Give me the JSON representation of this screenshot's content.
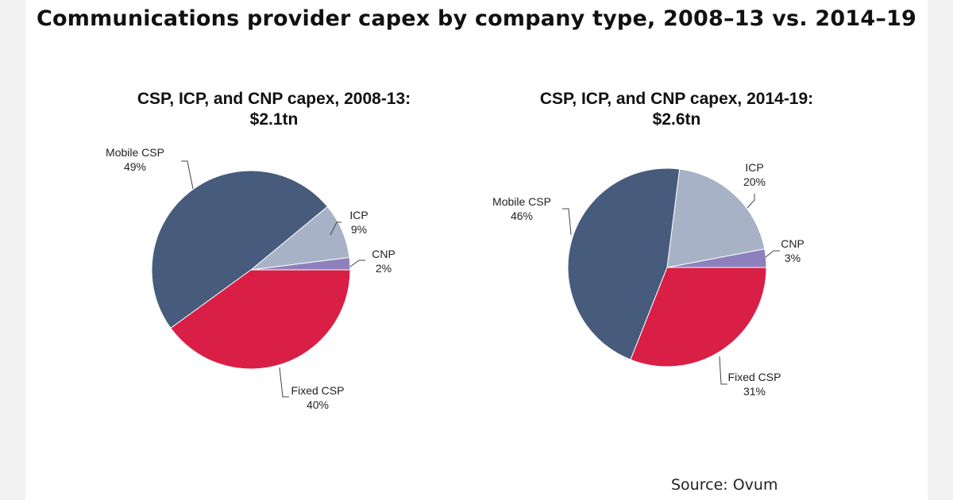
{
  "page_title": "Communications  provider capex by company type, 2008–13 vs. 2014–19",
  "source": "Source:  Ovum",
  "colors": {
    "mobile_csp": "#475b7d",
    "fixed_csp": "#d91f46",
    "icp": "#a7b2c6",
    "cnp": "#8e80bc"
  },
  "chart_data": [
    {
      "type": "pie",
      "title_line1": "CSP, ICP, and CNP capex, 2008-13:",
      "title_line2": "$2.1tn",
      "slices": [
        {
          "name": "ICP",
          "value": 9,
          "label": "9%"
        },
        {
          "name": "CNP",
          "value": 2,
          "label": "2%"
        },
        {
          "name": "Fixed CSP",
          "value": 40,
          "label": "40%"
        },
        {
          "name": "Mobile CSP",
          "value": 49,
          "label": "49%"
        }
      ]
    },
    {
      "type": "pie",
      "title_line1": "CSP, ICP, and CNP capex, 2014-19:",
      "title_line2": "$2.6tn",
      "slices": [
        {
          "name": "ICP",
          "value": 20,
          "label": "20%"
        },
        {
          "name": "CNP",
          "value": 3,
          "label": "3%"
        },
        {
          "name": "Fixed CSP",
          "value": 31,
          "label": "31%"
        },
        {
          "name": "Mobile CSP",
          "value": 46,
          "label": "46%"
        }
      ]
    }
  ]
}
